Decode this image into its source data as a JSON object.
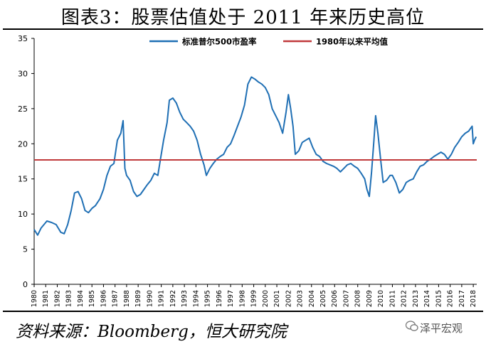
{
  "header": {
    "title": "图表3：股票估值处于 2011 年来历史高位"
  },
  "footer": {
    "source": "资料来源：Bloomberg，恒大研究院",
    "brand": "泽平宏观"
  },
  "icons": {
    "brand": "wechat-icon"
  },
  "colors": {
    "pe_line": "#1f6fb4",
    "avg_line": "#c0393b"
  },
  "chart_data": {
    "type": "line",
    "title": "",
    "xlabel": "",
    "ylabel": "",
    "ylim": [
      0,
      35
    ],
    "yticks": [
      0,
      5,
      10,
      15,
      20,
      25,
      30,
      35
    ],
    "xlim": [
      1980,
      2018.3
    ],
    "xticks": [
      "1980",
      "1981",
      "1982",
      "1983",
      "1984",
      "1985",
      "1986",
      "1987",
      "1988",
      "1989",
      "1990",
      "1991",
      "1992",
      "1993",
      "1994",
      "1995",
      "1996",
      "1997",
      "1998",
      "1999",
      "2000",
      "2001",
      "2002",
      "2003",
      "2004",
      "2005",
      "2006",
      "2007",
      "2008",
      "2009",
      "2010",
      "2011",
      "2012",
      "2013",
      "2014",
      "2015",
      "2016",
      "2017",
      "2018"
    ],
    "grid": false,
    "legend_position": "top",
    "series": [
      {
        "name": "标准普尔500市盈率",
        "color": "#1f6fb4",
        "points": [
          [
            1980.0,
            7.8
          ],
          [
            1980.3,
            7.0
          ],
          [
            1980.6,
            8.0
          ],
          [
            1980.9,
            8.6
          ],
          [
            1981.1,
            9.0
          ],
          [
            1981.5,
            8.8
          ],
          [
            1981.9,
            8.5
          ],
          [
            1982.3,
            7.4
          ],
          [
            1982.6,
            7.2
          ],
          [
            1982.9,
            8.5
          ],
          [
            1983.2,
            10.5
          ],
          [
            1983.5,
            13.0
          ],
          [
            1983.8,
            13.2
          ],
          [
            1984.1,
            12.2
          ],
          [
            1984.4,
            10.5
          ],
          [
            1984.7,
            10.2
          ],
          [
            1985.0,
            10.8
          ],
          [
            1985.3,
            11.2
          ],
          [
            1985.7,
            12.2
          ],
          [
            1986.0,
            13.5
          ],
          [
            1986.3,
            15.5
          ],
          [
            1986.6,
            16.8
          ],
          [
            1986.9,
            17.2
          ],
          [
            1987.2,
            20.5
          ],
          [
            1987.5,
            21.5
          ],
          [
            1987.7,
            23.3
          ],
          [
            1987.85,
            16.5
          ],
          [
            1988.0,
            15.5
          ],
          [
            1988.3,
            14.8
          ],
          [
            1988.6,
            13.2
          ],
          [
            1988.9,
            12.5
          ],
          [
            1989.2,
            12.8
          ],
          [
            1989.5,
            13.5
          ],
          [
            1989.8,
            14.2
          ],
          [
            1990.1,
            14.8
          ],
          [
            1990.4,
            15.8
          ],
          [
            1990.7,
            15.5
          ],
          [
            1990.9,
            17.5
          ],
          [
            1991.2,
            20.5
          ],
          [
            1991.5,
            23.0
          ],
          [
            1991.7,
            26.2
          ],
          [
            1992.0,
            26.5
          ],
          [
            1992.3,
            25.8
          ],
          [
            1992.6,
            24.5
          ],
          [
            1992.9,
            23.5
          ],
          [
            1993.2,
            23.0
          ],
          [
            1993.5,
            22.5
          ],
          [
            1993.8,
            21.8
          ],
          [
            1994.1,
            20.5
          ],
          [
            1994.4,
            18.5
          ],
          [
            1994.7,
            17.0
          ],
          [
            1994.9,
            15.5
          ],
          [
            1995.2,
            16.5
          ],
          [
            1995.5,
            17.2
          ],
          [
            1995.8,
            17.8
          ],
          [
            1996.1,
            18.2
          ],
          [
            1996.4,
            18.5
          ],
          [
            1996.7,
            19.5
          ],
          [
            1997.0,
            20.0
          ],
          [
            1997.3,
            21.2
          ],
          [
            1997.6,
            22.5
          ],
          [
            1997.9,
            23.8
          ],
          [
            1998.2,
            25.5
          ],
          [
            1998.5,
            28.5
          ],
          [
            1998.8,
            29.5
          ],
          [
            1999.1,
            29.2
          ],
          [
            1999.4,
            28.8
          ],
          [
            1999.7,
            28.5
          ],
          [
            2000.0,
            28.0
          ],
          [
            2000.3,
            27.0
          ],
          [
            2000.6,
            25.0
          ],
          [
            2000.9,
            24.0
          ],
          [
            2001.2,
            23.0
          ],
          [
            2001.5,
            21.5
          ],
          [
            2001.8,
            24.5
          ],
          [
            2002.0,
            27.0
          ],
          [
            2002.2,
            25.0
          ],
          [
            2002.4,
            22.5
          ],
          [
            2002.6,
            18.5
          ],
          [
            2002.9,
            19.0
          ],
          [
            2003.2,
            20.2
          ],
          [
            2003.5,
            20.5
          ],
          [
            2003.8,
            20.8
          ],
          [
            2004.1,
            19.5
          ],
          [
            2004.4,
            18.5
          ],
          [
            2004.7,
            18.2
          ],
          [
            2005.0,
            17.5
          ],
          [
            2005.3,
            17.2
          ],
          [
            2005.6,
            17.0
          ],
          [
            2005.9,
            16.8
          ],
          [
            2006.2,
            16.5
          ],
          [
            2006.5,
            16.0
          ],
          [
            2006.8,
            16.5
          ],
          [
            2007.1,
            17.0
          ],
          [
            2007.4,
            17.2
          ],
          [
            2007.7,
            16.8
          ],
          [
            2008.0,
            16.5
          ],
          [
            2008.3,
            15.8
          ],
          [
            2008.6,
            15.0
          ],
          [
            2008.8,
            13.5
          ],
          [
            2009.0,
            12.5
          ],
          [
            2009.2,
            16.0
          ],
          [
            2009.4,
            20.5
          ],
          [
            2009.55,
            24.0
          ],
          [
            2009.75,
            21.5
          ],
          [
            2010.0,
            17.5
          ],
          [
            2010.2,
            14.5
          ],
          [
            2010.5,
            14.8
          ],
          [
            2010.8,
            15.5
          ],
          [
            2011.0,
            15.5
          ],
          [
            2011.3,
            14.5
          ],
          [
            2011.6,
            13.0
          ],
          [
            2011.9,
            13.5
          ],
          [
            2012.2,
            14.5
          ],
          [
            2012.5,
            14.8
          ],
          [
            2012.8,
            15.0
          ],
          [
            2013.1,
            16.0
          ],
          [
            2013.4,
            16.8
          ],
          [
            2013.7,
            17.0
          ],
          [
            2014.0,
            17.5
          ],
          [
            2014.3,
            17.8
          ],
          [
            2014.6,
            18.2
          ],
          [
            2014.9,
            18.5
          ],
          [
            2015.2,
            18.8
          ],
          [
            2015.5,
            18.5
          ],
          [
            2015.8,
            17.8
          ],
          [
            2016.1,
            18.5
          ],
          [
            2016.4,
            19.5
          ],
          [
            2016.7,
            20.2
          ],
          [
            2017.0,
            21.0
          ],
          [
            2017.3,
            21.5
          ],
          [
            2017.6,
            21.8
          ],
          [
            2017.9,
            22.5
          ],
          [
            2018.0,
            20.0
          ],
          [
            2018.1,
            20.5
          ],
          [
            2018.25,
            21.0
          ]
        ]
      },
      {
        "name": "1980年以来平均值",
        "color": "#c0393b",
        "points": [
          [
            1980.0,
            17.7
          ],
          [
            2018.3,
            17.7
          ]
        ]
      }
    ]
  }
}
